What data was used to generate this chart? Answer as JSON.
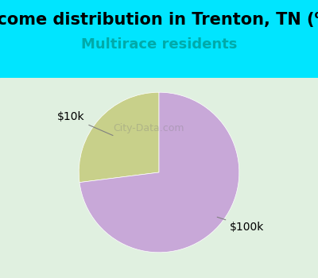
{
  "title": "Income distribution in Trenton, TN (%)",
  "subtitle": "Multirace residents",
  "title_fontsize": 15,
  "subtitle_fontsize": 13,
  "slices": [
    {
      "label": "$10k",
      "value": 27,
      "color": "#c8d08a"
    },
    {
      "label": "$100k",
      "value": 73,
      "color": "#c8a8d8"
    }
  ],
  "background_color": "#00e5ff",
  "chart_bg_color": "#e8f5e0",
  "startangle": 90,
  "watermark": "City-Data.com"
}
